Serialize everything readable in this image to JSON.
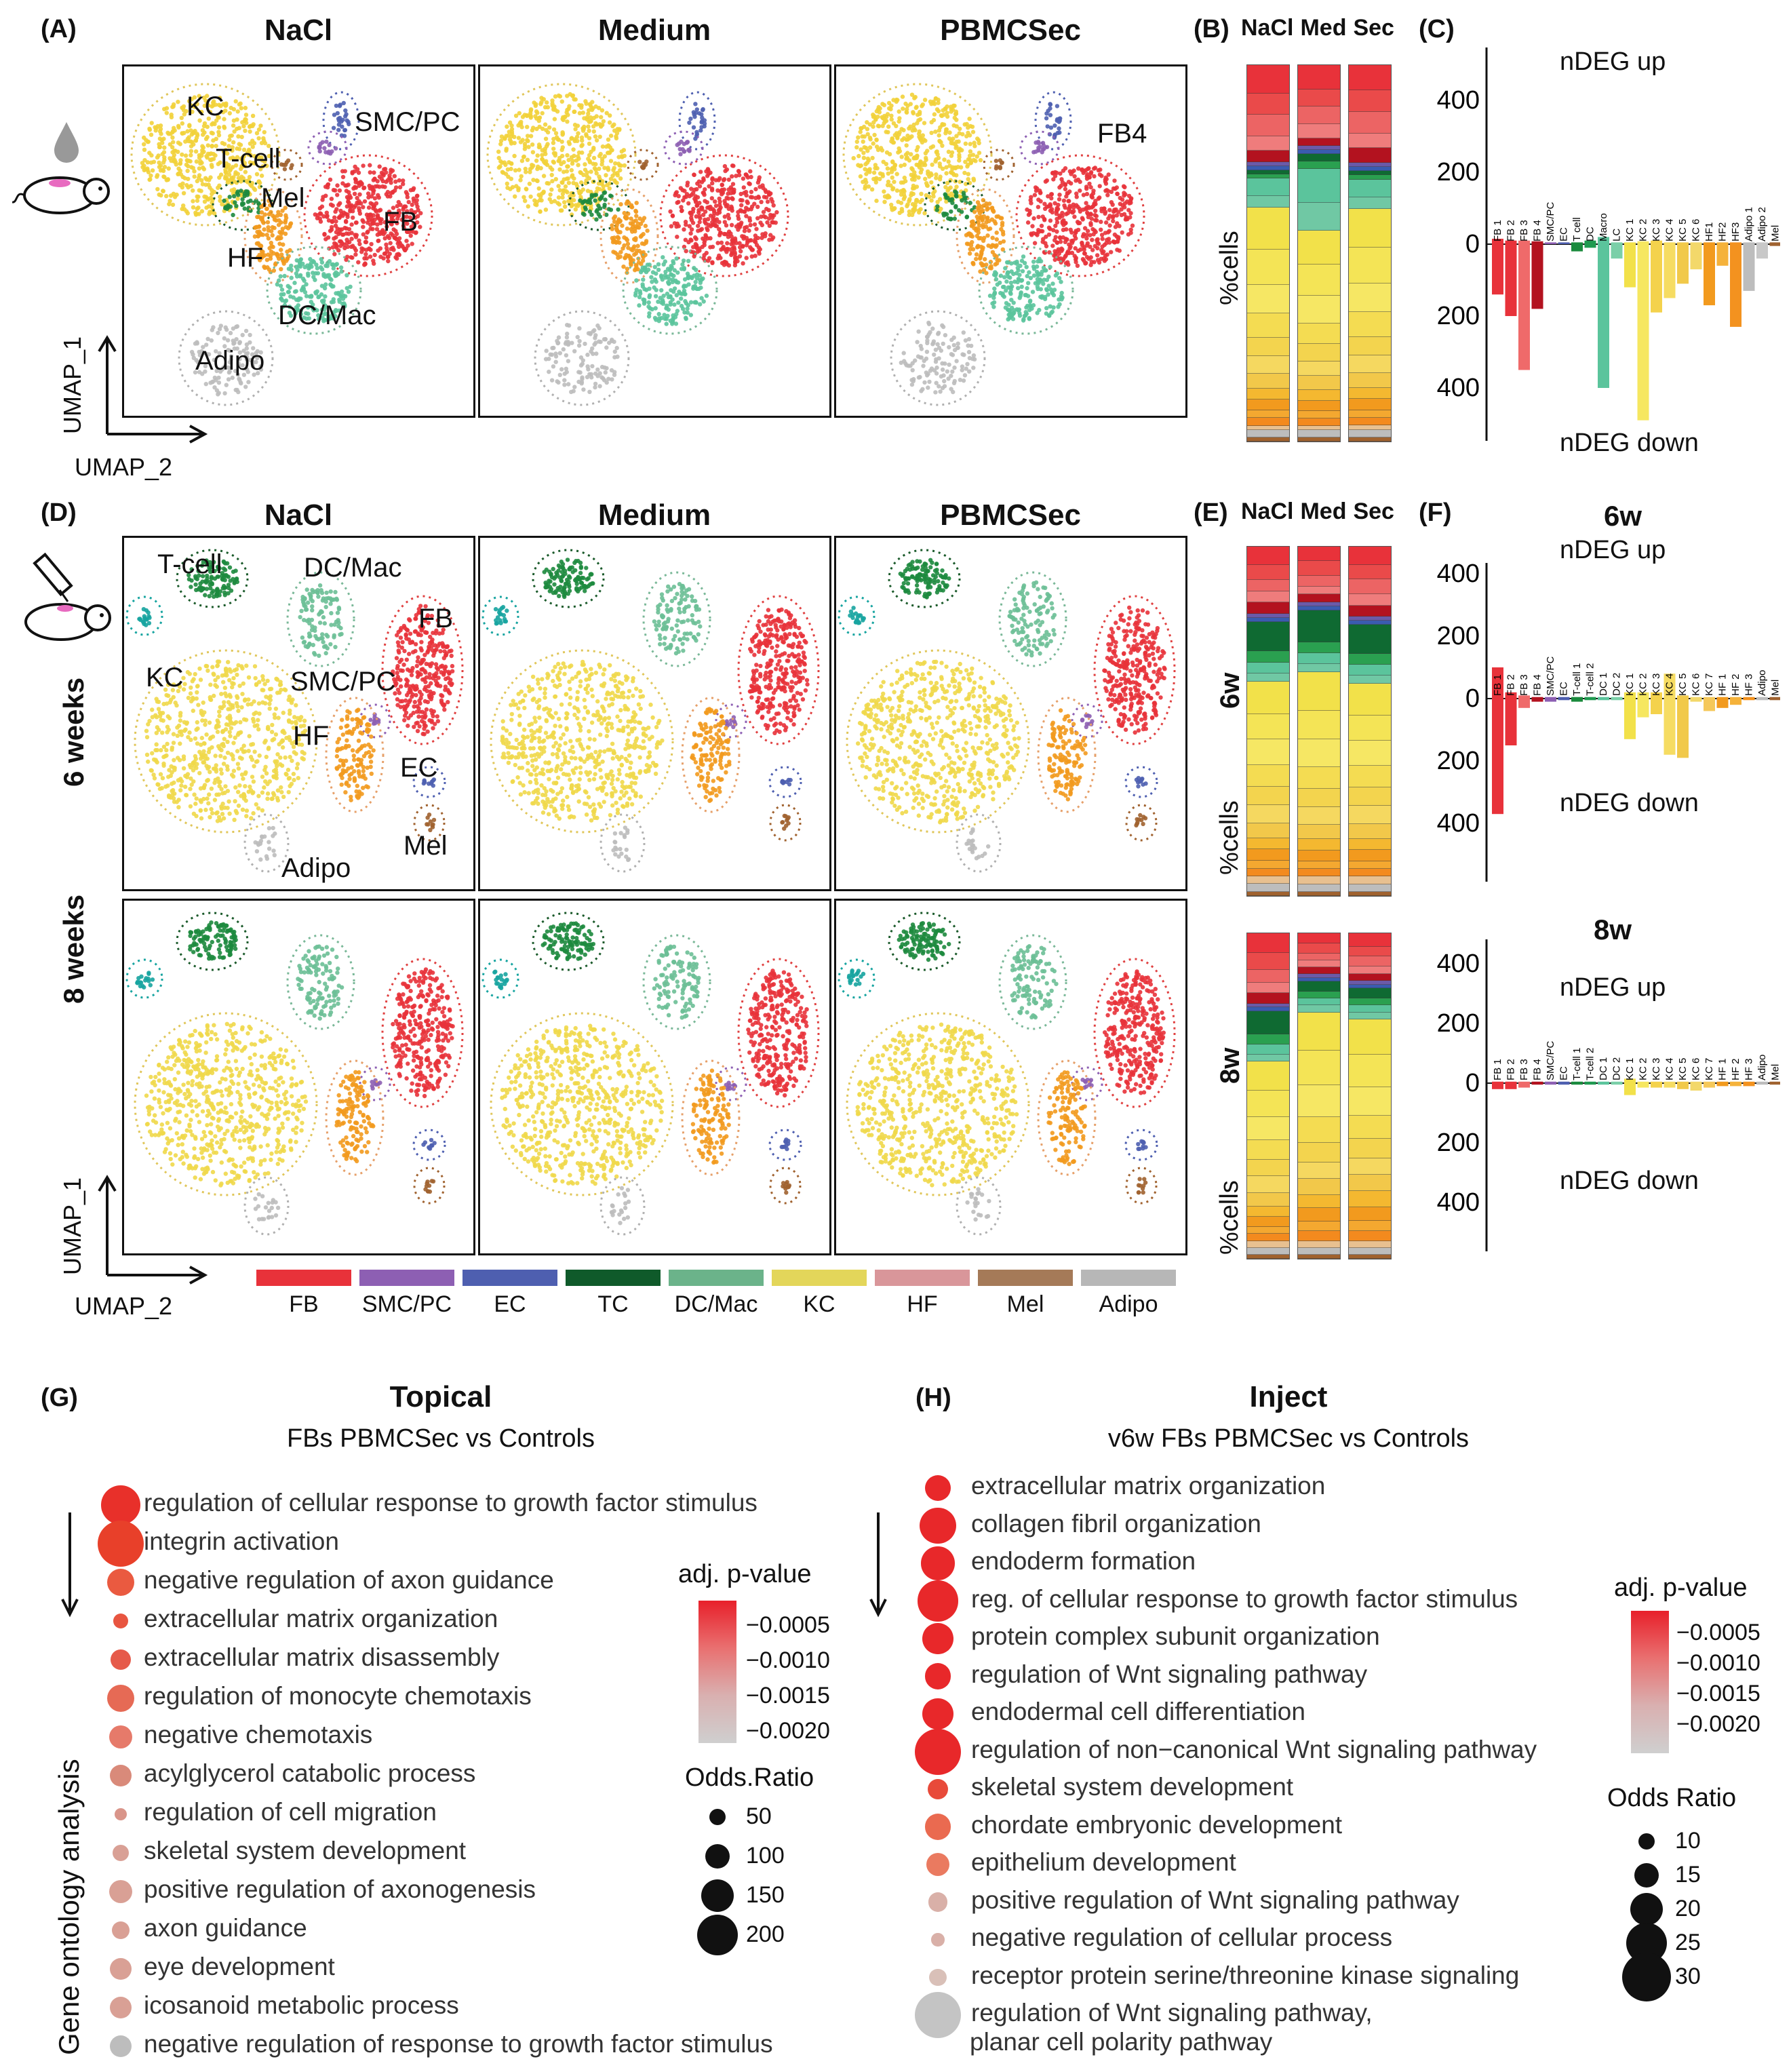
{
  "panels": {
    "A": "(A)",
    "B": "(B)",
    "C": "(C)",
    "D": "(D)",
    "E": "(E)",
    "F": "(F)",
    "G": "(G)",
    "H": "(H)"
  },
  "conditions": [
    "NaCl",
    "Medium",
    "PBMCSec"
  ],
  "stack_headers": [
    "NaCl",
    "Med",
    "Sec"
  ],
  "umap_axes": {
    "y": "UMAP_1",
    "x": "UMAP_2"
  },
  "top_cluster_labels": {
    "kc": "KC",
    "tcell": "T-cell",
    "mel": "Mel",
    "smc": "SMC/PC",
    "fb": "FB",
    "hf": "HF",
    "dcmac": "DC/Mac",
    "adipo": "Adipo",
    "fb4": "FB4"
  },
  "inject_cluster_labels": {
    "tcell": "T-cell",
    "dcmac": "DC/Mac",
    "fb": "FB",
    "kc": "KC",
    "smc": "SMC/PC",
    "hf": "HF",
    "ec": "EC",
    "mel": "Mel",
    "adipo": "Adipo"
  },
  "row_labels": {
    "w6": "6 weeks",
    "w8": "8 weeks"
  },
  "pct_cells": "%cells",
  "stack_tags": {
    "w6": "6w",
    "w8": "8w"
  },
  "deg": {
    "up": "nDEG up",
    "down": "nDEG down",
    "ticks_top": [
      "400",
      "200",
      "0",
      "200",
      "400"
    ],
    "w6_title": "6w",
    "w8_title": "8w",
    "C_labels": [
      "FB 1",
      "FB 2",
      "FB 3",
      "FB 4",
      "SMC/PC",
      "EC",
      "T cell",
      "DC",
      "Macro",
      "LC",
      "KC 1",
      "KC 2",
      "KC 3",
      "KC 4",
      "KC 5",
      "KC 6",
      "HF1",
      "HF2",
      "HF3",
      "Adipo 1",
      "Adipo 2",
      "Mel"
    ],
    "F_labels": [
      "FB 1",
      "FB 2",
      "FB 3",
      "FB 4",
      "SMC/PC",
      "EC",
      "T-cell 1",
      "T-cell 2",
      "DC 1",
      "DC 2",
      "KC 1",
      "KC 2",
      "KC 3",
      "KC 4",
      "KC 5",
      "KC 6",
      "KC 7",
      "HF 1",
      "HF 2",
      "HF 3",
      "Adipo",
      "Mel"
    ]
  },
  "chart_data": [
    {
      "type": "bar",
      "title": "",
      "panel": "C",
      "categories": [
        "FB 1",
        "FB 2",
        "FB 3",
        "FB 4",
        "SMC/PC",
        "EC",
        "T cell",
        "DC",
        "Macro",
        "LC",
        "KC 1",
        "KC 2",
        "KC 3",
        "KC 4",
        "KC 5",
        "KC 6",
        "HF1",
        "HF2",
        "HF3",
        "Adipo 1",
        "Adipo 2",
        "Mel"
      ],
      "series": [
        {
          "name": "nDEG up",
          "values": [
            15,
            10,
            10,
            8,
            5,
            5,
            5,
            10,
            20,
            5,
            5,
            8,
            10,
            5,
            5,
            5,
            5,
            5,
            5,
            5,
            5,
            5
          ]
        },
        {
          "name": "nDEG down",
          "values": [
            140,
            200,
            350,
            180,
            0,
            0,
            20,
            10,
            400,
            40,
            120,
            490,
            190,
            150,
            110,
            70,
            170,
            60,
            230,
            130,
            40,
            5
          ]
        }
      ],
      "colors": [
        "#e8323a",
        "#e8323a",
        "#ef6a6a",
        "#b3121f",
        "#8d5fb3",
        "#4e5fb0",
        "#1a8a3d",
        "#1f9a50",
        "#5bc49c",
        "#7acfa8",
        "#f2e14a",
        "#f6e760",
        "#f4d24c",
        "#f6dc62",
        "#f1c94a",
        "#f3d86a",
        "#f29a1e",
        "#f5b23a",
        "#f3921f",
        "#bdbdbd",
        "#c8c8c8",
        "#a0622f"
      ],
      "ylim": [
        0,
        500
      ]
    },
    {
      "type": "bar",
      "title": "6w",
      "panel": "F",
      "categories": [
        "FB 1",
        "FB 2",
        "FB 3",
        "FB 4",
        "SMC/PC",
        "EC",
        "T-cell 1",
        "T-cell 2",
        "DC 1",
        "DC 2",
        "KC 1",
        "KC 2",
        "KC 3",
        "KC 4",
        "KC 5",
        "KC 6",
        "KC 7",
        "HF 1",
        "HF 2",
        "HF 3",
        "Adipo",
        "Mel"
      ],
      "series": [
        {
          "name": "nDEG up",
          "values": [
            100,
            20,
            10,
            5,
            5,
            5,
            5,
            5,
            5,
            5,
            20,
            20,
            20,
            80,
            10,
            5,
            5,
            5,
            5,
            5,
            5,
            5
          ]
        },
        {
          "name": "nDEG down",
          "values": [
            370,
            150,
            30,
            10,
            10,
            5,
            10,
            5,
            5,
            5,
            130,
            60,
            50,
            180,
            190,
            10,
            40,
            30,
            20,
            5,
            5,
            5
          ]
        }
      ],
      "colors": [
        "#e8323a",
        "#e8323a",
        "#ef6a6a",
        "#b3121f",
        "#8d5fb3",
        "#4e5fb0",
        "#1a8a3d",
        "#1f9a50",
        "#5bc49c",
        "#7acfa8",
        "#f2e14a",
        "#f6e760",
        "#f4d24c",
        "#f6dc62",
        "#f1c94a",
        "#f3d86a",
        "#f5c85a",
        "#f29a1e",
        "#f5b23a",
        "#f3921f",
        "#bdbdbd",
        "#a0622f"
      ],
      "ylim": [
        0,
        450
      ]
    },
    {
      "type": "bar",
      "title": "8w",
      "panel": "F",
      "categories": [
        "FB 1",
        "FB 2",
        "FB 3",
        "FB 4",
        "SMC/PC",
        "EC",
        "T-cell 1",
        "T-cell 2",
        "DC 1",
        "DC 2",
        "KC 1",
        "KC 2",
        "KC 3",
        "KC 4",
        "KC 5",
        "KC 6",
        "KC 7",
        "HF 1",
        "HF 2",
        "HF 3",
        "Adipo",
        "Mel"
      ],
      "series": [
        {
          "name": "nDEG up",
          "values": [
            5,
            5,
            5,
            5,
            5,
            5,
            5,
            5,
            5,
            5,
            15,
            5,
            5,
            5,
            5,
            5,
            5,
            5,
            5,
            5,
            5,
            5
          ]
        },
        {
          "name": "nDEG down",
          "values": [
            20,
            20,
            15,
            5,
            5,
            5,
            5,
            5,
            5,
            5,
            40,
            15,
            15,
            15,
            20,
            25,
            15,
            10,
            10,
            10,
            5,
            5
          ]
        }
      ],
      "colors": [
        "#e8323a",
        "#e8323a",
        "#ef6a6a",
        "#b3121f",
        "#8d5fb3",
        "#4e5fb0",
        "#1a8a3d",
        "#1f9a50",
        "#5bc49c",
        "#7acfa8",
        "#f2e14a",
        "#f6e760",
        "#f4d24c",
        "#f6dc62",
        "#f1c94a",
        "#f3d86a",
        "#f5c85a",
        "#f29a1e",
        "#f5b23a",
        "#f3921f",
        "#bdbdbd",
        "#a0622f"
      ],
      "ylim": [
        0,
        450
      ]
    }
  ],
  "legend": {
    "items": [
      {
        "label": "FB",
        "color": "#e8323a"
      },
      {
        "label": "SMC/PC",
        "color": "#8d5fb3"
      },
      {
        "label": "EC",
        "color": "#4e5fb0"
      },
      {
        "label": "TC",
        "color": "#0f5a2a"
      },
      {
        "label": "DC/Mac",
        "color": "#6bb38a"
      },
      {
        "label": "KC",
        "color": "#e3d65a"
      },
      {
        "label": "HF",
        "color": "#d9969a"
      },
      {
        "label": "Mel",
        "color": "#a57a58"
      },
      {
        "label": "Adipo",
        "color": "#b7b7b7"
      }
    ]
  },
  "go": {
    "left_axis": "Gene ontology analysis",
    "G": {
      "title": "Topical",
      "subtitle": "FBs PBMCSec vs Controls",
      "terms": [
        {
          "label": "regulation of cellular response to growth factor stimulus",
          "size": 180,
          "color": "#e8302a"
        },
        {
          "label": "integrin activation",
          "size": 220,
          "color": "#e8402a"
        },
        {
          "label": "negative regulation of axon guidance",
          "size": 110,
          "color": "#ea5a40"
        },
        {
          "label": "extracellular matrix organization",
          "size": 40,
          "color": "#e85540"
        },
        {
          "label": "extracellular matrix disassembly",
          "size": 70,
          "color": "#e65a4a"
        },
        {
          "label": "regulation of monocyte chemotaxis",
          "size": 110,
          "color": "#e66a55"
        },
        {
          "label": "negative chemotaxis",
          "size": 90,
          "color": "#e67a6a"
        },
        {
          "label": "acylglycerol catabolic process",
          "size": 80,
          "color": "#d98a7a"
        },
        {
          "label": "regulation of cell migration",
          "size": 25,
          "color": "#d9958a"
        },
        {
          "label": "skeletal system development",
          "size": 50,
          "color": "#d9a095"
        },
        {
          "label": "positive regulation of axonogenesis",
          "size": 90,
          "color": "#d9a095"
        },
        {
          "label": "axon guidance",
          "size": 55,
          "color": "#d9a095"
        },
        {
          "label": "eye development",
          "size": 80,
          "color": "#d9a095"
        },
        {
          "label": "icosanoid metabolic process",
          "size": 80,
          "color": "#d9a095"
        },
        {
          "label": "negative regulation of response to growth factor stimulus",
          "size": 80,
          "color": "#bdbdbd"
        }
      ],
      "legend_title": "adj. p-value",
      "legend_ticks": [
        "−0.0005",
        "−0.0010",
        "−0.0015",
        "−0.0020"
      ],
      "size_title": "Odds.Ratio",
      "size_ticks": [
        "50",
        "100",
        "150",
        "200"
      ]
    },
    "H": {
      "title": "Inject",
      "subtitle": "v6w FBs PBMCSec vs Controls",
      "terms": [
        {
          "label": "extracellular matrix organization",
          "size": 14,
          "color": "#e8282a"
        },
        {
          "label": "collagen fibril organization",
          "size": 22,
          "color": "#e8282a"
        },
        {
          "label": "endoderm formation",
          "size": 20,
          "color": "#e8282a"
        },
        {
          "label": "reg. of cellular response to growth factor stimulus",
          "size": 26,
          "color": "#e8282a"
        },
        {
          "label": "protein complex subunit organization",
          "size": 18,
          "color": "#e8282a"
        },
        {
          "label": "regulation of Wnt signaling pathway",
          "size": 14,
          "color": "#e8282a"
        },
        {
          "label": "endodermal cell differentiation",
          "size": 18,
          "color": "#e8282a"
        },
        {
          "label": "regulation of non−canonical Wnt signaling pathway",
          "size": 30,
          "color": "#e8282a"
        },
        {
          "label": "skeletal system development",
          "size": 10,
          "color": "#e84a3a"
        },
        {
          "label": "chordate embryonic development",
          "size": 14,
          "color": "#ea6a50"
        },
        {
          "label": "epithelium development",
          "size": 12,
          "color": "#ea7a60"
        },
        {
          "label": "positive regulation of Wnt signaling pathway",
          "size": 9,
          "color": "#d9b0a8"
        },
        {
          "label": "negative regulation of cellular process",
          "size": 4,
          "color": "#d9b0a8"
        },
        {
          "label": "receptor protein serine/threonine kinase signaling",
          "size": 7,
          "color": "#d9c0b8"
        },
        {
          "label": "regulation of Wnt signaling pathway,",
          "size": 30,
          "color": "#c4c4c4"
        }
      ],
      "extra_line": "planar cell polarity pathway",
      "legend_title": "adj. p-value",
      "legend_ticks": [
        "−0.0005",
        "−0.0010",
        "−0.0015",
        "−0.0020"
      ],
      "size_title": "Odds Ratio",
      "size_ticks": [
        "10",
        "15",
        "20",
        "25",
        "30"
      ]
    }
  }
}
